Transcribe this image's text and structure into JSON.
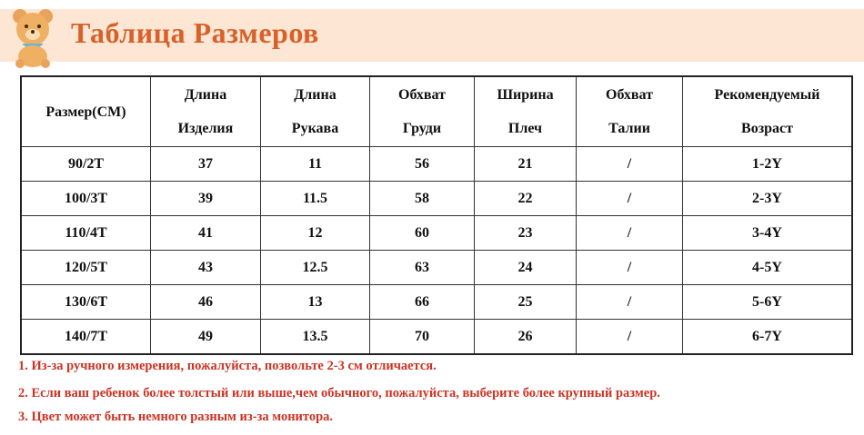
{
  "header": {
    "title": "Таблица Размеров"
  },
  "table": {
    "columns": [
      [
        "Размер(СМ)"
      ],
      [
        "Длина",
        "Изделия"
      ],
      [
        "Длина",
        "Рукава"
      ],
      [
        "Обхват",
        "Груди"
      ],
      [
        "Ширина",
        "Плеч"
      ],
      [
        "Обхват",
        "Талии"
      ],
      [
        "Рекомендуемый",
        "Возраст"
      ]
    ],
    "rows": [
      [
        "90/2T",
        37,
        11,
        56,
        21,
        "/",
        "1-2Y"
      ],
      [
        "100/3T",
        39,
        11.5,
        58,
        22,
        "/",
        "2-3Y"
      ],
      [
        "110/4T",
        41,
        12,
        60,
        23,
        "/",
        "3-4Y"
      ],
      [
        "120/5T",
        43,
        12.5,
        63,
        24,
        "/",
        "4-5Y"
      ],
      [
        "130/6T",
        46,
        13,
        66,
        25,
        "/",
        "5-6Y"
      ],
      [
        "140/7T",
        49,
        13.5,
        70,
        26,
        "/",
        "6-7Y"
      ]
    ]
  },
  "notes": [
    "1. Из-за ручного измерения, пожалуйста, позвольте 2-3 см отличается.",
    "2. Если ваш ребенок более толстый или выше,чем обычного, пожалуйста, выберите более крупный размер.",
    "3. Цвет может быть немного разным из-за монитора."
  ]
}
